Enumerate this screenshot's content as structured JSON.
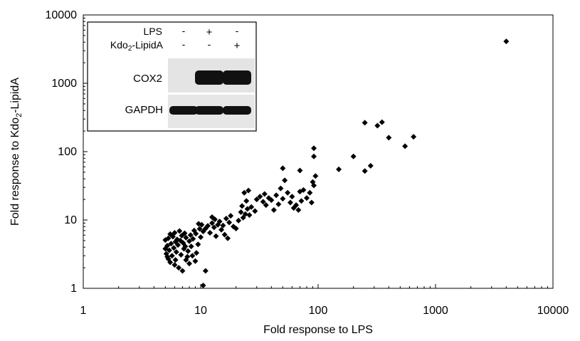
{
  "chart_data": {
    "type": "scatter",
    "xscale": "log",
    "yscale": "log",
    "xlim": [
      1,
      10000
    ],
    "ylim": [
      1,
      10000
    ],
    "xticks": [
      "1",
      "10",
      "100",
      "1000",
      "10000"
    ],
    "yticks": [
      "1",
      "10",
      "100",
      "1000",
      "10000"
    ],
    "xlabel": "Fold response to LPS",
    "ylabel": "Fold response to Kdo",
    "ylabel_sub": "2",
    "ylabel_tail": "-LipidA",
    "grid": false,
    "marker_color": "#000000",
    "marker": "diamond",
    "points": [
      [
        10.5,
        1.1
      ],
      [
        11,
        1.8
      ],
      [
        5.3,
        2.7
      ],
      [
        5.5,
        2.4
      ],
      [
        6,
        2.2
      ],
      [
        6.5,
        2.0
      ],
      [
        7,
        1.8
      ],
      [
        7.5,
        2.6
      ],
      [
        8,
        2.3
      ],
      [
        8.5,
        3.0
      ],
      [
        9,
        2.5
      ],
      [
        5.1,
        3.2
      ],
      [
        5.4,
        3.6
      ],
      [
        5.7,
        3.0
      ],
      [
        6.2,
        3.4
      ],
      [
        6.8,
        3.1
      ],
      [
        7.2,
        3.8
      ],
      [
        7.8,
        3.5
      ],
      [
        8.3,
        4.1
      ],
      [
        9.2,
        3.3
      ],
      [
        5.2,
        4.2
      ],
      [
        5.6,
        4.5
      ],
      [
        5.9,
        3.9
      ],
      [
        6.1,
        4.8
      ],
      [
        6.4,
        4.3
      ],
      [
        6.7,
        5.0
      ],
      [
        7.1,
        4.6
      ],
      [
        7.4,
        4.1
      ],
      [
        8,
        4.9
      ],
      [
        8.6,
        5.3
      ],
      [
        9.5,
        4.4
      ],
      [
        10,
        5.6
      ],
      [
        5.0,
        5.1
      ],
      [
        5.3,
        5.4
      ],
      [
        5.8,
        5.7
      ],
      [
        6.3,
        5.2
      ],
      [
        6.9,
        5.9
      ],
      [
        7.5,
        5.5
      ],
      [
        8.2,
        6.0
      ],
      [
        9.1,
        6.3
      ],
      [
        5.5,
        6.2
      ],
      [
        6,
        6.5
      ],
      [
        6.6,
        6.9
      ],
      [
        7.3,
        6.4
      ],
      [
        8.8,
        7.0
      ],
      [
        9.8,
        7.4
      ],
      [
        5.0,
        3.8
      ],
      [
        5.2,
        2.9
      ],
      [
        6.1,
        2.6
      ],
      [
        7.7,
        2.9
      ],
      [
        10.5,
        6.8
      ],
      [
        11,
        7.5
      ],
      [
        11.5,
        8.2
      ],
      [
        12,
        6.5
      ],
      [
        12.5,
        9.0
      ],
      [
        13,
        7.8
      ],
      [
        10.2,
        8.5
      ],
      [
        9.6,
        8.8
      ],
      [
        13.5,
        5.8
      ],
      [
        14,
        8.5
      ],
      [
        14.5,
        9.5
      ],
      [
        15,
        7.2
      ],
      [
        15.5,
        8.3
      ],
      [
        16,
        6.1
      ],
      [
        16.5,
        10.5
      ],
      [
        17,
        5.4
      ],
      [
        17.5,
        9.2
      ],
      [
        18,
        11.5
      ],
      [
        19,
        8.0
      ],
      [
        20,
        7.5
      ],
      [
        12.5,
        11.0
      ],
      [
        13.2,
        10.2
      ],
      [
        21,
        9.8
      ],
      [
        22,
        13.0
      ],
      [
        23,
        10.8
      ],
      [
        24,
        12.2
      ],
      [
        25,
        14.5
      ],
      [
        26,
        11.8
      ],
      [
        22.5,
        16.0
      ],
      [
        24.5,
        19.0
      ],
      [
        23.5,
        25.0
      ],
      [
        25.5,
        27.0
      ],
      [
        27,
        15.5
      ],
      [
        29,
        13.5
      ],
      [
        30,
        20.0
      ],
      [
        32,
        22.0
      ],
      [
        34,
        18.5
      ],
      [
        35,
        24.0
      ],
      [
        36,
        16.5
      ],
      [
        38,
        21.0
      ],
      [
        40,
        19.5
      ],
      [
        42,
        14.0
      ],
      [
        44,
        23.0
      ],
      [
        46,
        17.0
      ],
      [
        48,
        29.0
      ],
      [
        50,
        20.5
      ],
      [
        52,
        38.0
      ],
      [
        55,
        25.0
      ],
      [
        58,
        18.0
      ],
      [
        60,
        22.0
      ],
      [
        62,
        15.0
      ],
      [
        65,
        16.5
      ],
      [
        68,
        14.0
      ],
      [
        70,
        26.0
      ],
      [
        72,
        19.0
      ],
      [
        75,
        27.5
      ],
      [
        80,
        21.0
      ],
      [
        85,
        25.0
      ],
      [
        90,
        36.0
      ],
      [
        92,
        32.0
      ],
      [
        95,
        44.0
      ],
      [
        88,
        18.0
      ],
      [
        50,
        57.0
      ],
      [
        70,
        53.0
      ],
      [
        92,
        85.0
      ],
      [
        92,
        112.0
      ],
      [
        150,
        55.0
      ],
      [
        200,
        85.0
      ],
      [
        250,
        52.0
      ],
      [
        280,
        62.0
      ],
      [
        250,
        265.0
      ],
      [
        320,
        240.0
      ],
      [
        350,
        270.0
      ],
      [
        400,
        160.0
      ],
      [
        550,
        120.0
      ],
      [
        650,
        165.0
      ],
      [
        4000,
        4100.0
      ]
    ]
  },
  "inset": {
    "row_labels": [
      "LPS",
      "Kdo",
      "-LipidA"
    ],
    "row2_sub": "2",
    "lps_marks": [
      "-",
      "+",
      "-"
    ],
    "kdo_marks": [
      "-",
      "-",
      "+"
    ],
    "blot_labels": [
      "COX2",
      "GAPDH"
    ],
    "cox2_intensity": [
      0.0,
      1.0,
      1.0
    ],
    "gapdh_intensity": [
      1.0,
      1.0,
      1.0
    ]
  }
}
